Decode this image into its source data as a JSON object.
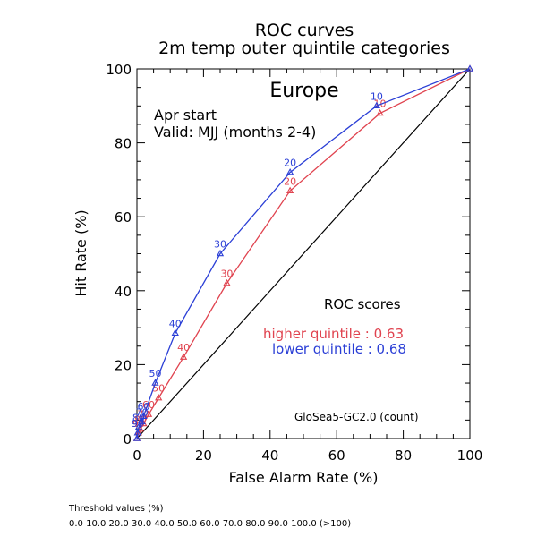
{
  "chart_data": {
    "type": "line",
    "title_lines": [
      "ROC curves",
      "2m temp outer quintile categories"
    ],
    "xlabel": "False Alarm Rate (%)",
    "ylabel": "Hit Rate (%)",
    "xlim": [
      0,
      100
    ],
    "ylim": [
      0,
      100
    ],
    "x_ticks": [
      0,
      20,
      40,
      60,
      80,
      100
    ],
    "y_ticks": [
      0,
      20,
      40,
      60,
      80,
      100
    ],
    "grid": false,
    "region": "Europe",
    "info_lines": [
      "Apr start",
      "Valid: MJJ (months 2-4)"
    ],
    "scores_title": "ROC scores",
    "model_label": "GloSea5-GC2.0 (count)",
    "threshold_title": "Threshold values (%)",
    "threshold_values": "0.0 10.0 20.0 30.0 40.0 50.0 60.0 70.0 80.0 90.0 100.0 (>100)",
    "diagonal": [
      [
        0,
        0
      ],
      [
        100,
        100
      ]
    ],
    "series": [
      {
        "name": "higher quintile",
        "score_text": "higher quintile : 0.63",
        "color": "#e0434f",
        "points": [
          {
            "x": 100,
            "y": 100,
            "label": ""
          },
          {
            "x": 73,
            "y": 88,
            "label": "10"
          },
          {
            "x": 46,
            "y": 67,
            "label": "20"
          },
          {
            "x": 27,
            "y": 42,
            "label": "30"
          },
          {
            "x": 14,
            "y": 22,
            "label": "40"
          },
          {
            "x": 6.5,
            "y": 11,
            "label": "50"
          },
          {
            "x": 3.5,
            "y": 6.5,
            "label": "60"
          },
          {
            "x": 2,
            "y": 4,
            "label": "70"
          },
          {
            "x": 1,
            "y": 2.5,
            "label": "80"
          },
          {
            "x": 0.5,
            "y": 1.5,
            "label": "90"
          },
          {
            "x": 0,
            "y": 0,
            "label": ""
          }
        ]
      },
      {
        "name": "lower quintile",
        "score_text": "lower quintile : 0.68",
        "color": "#2b3fd6",
        "points": [
          {
            "x": 100,
            "y": 100,
            "label": ""
          },
          {
            "x": 72,
            "y": 90,
            "label": "10"
          },
          {
            "x": 46,
            "y": 72,
            "label": "20"
          },
          {
            "x": 25,
            "y": 50,
            "label": "30"
          },
          {
            "x": 11.5,
            "y": 28.5,
            "label": "40"
          },
          {
            "x": 5.5,
            "y": 15,
            "label": "50"
          },
          {
            "x": 2,
            "y": 6,
            "label": "60"
          },
          {
            "x": 1.5,
            "y": 4.5,
            "label": "70"
          },
          {
            "x": 0.5,
            "y": 3,
            "label": "80"
          },
          {
            "x": 0.2,
            "y": 1.5,
            "label": "90"
          },
          {
            "x": 0,
            "y": 0,
            "label": ""
          }
        ]
      }
    ]
  }
}
